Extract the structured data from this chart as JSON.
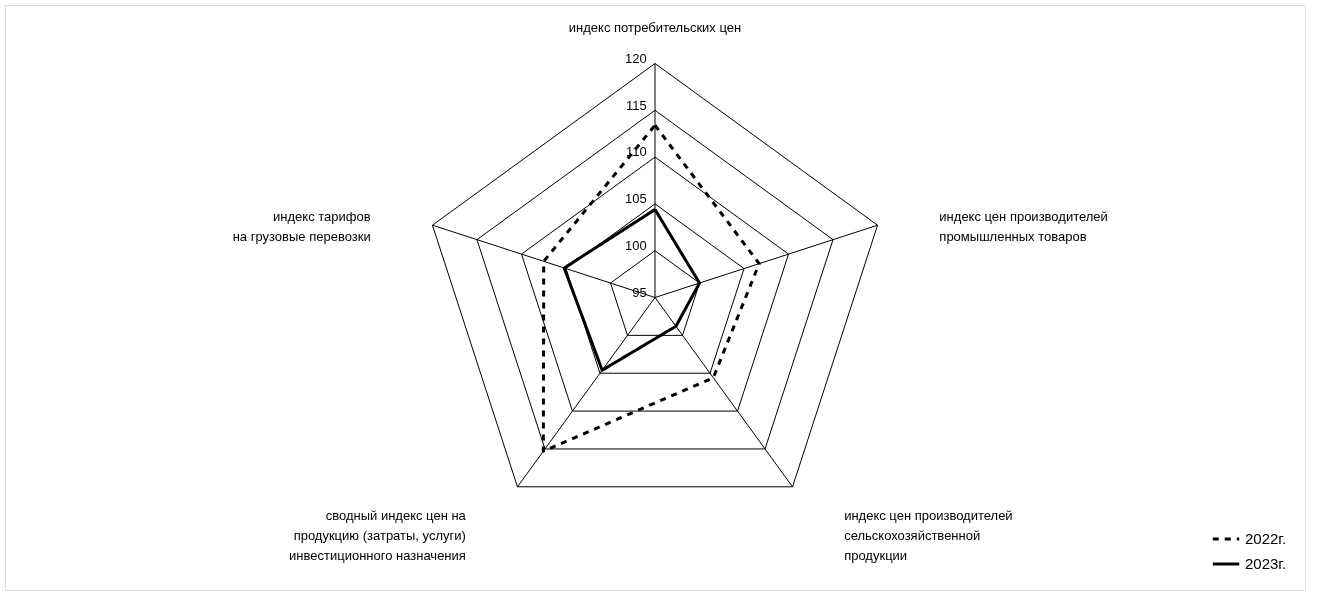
{
  "chart_data": {
    "type": "radar",
    "categories": [
      "индекс потребительских цен",
      "индекс цен производителей\nпромышленных товаров",
      "индекс цен производителей\nсельскохозяйственной\nпродукции",
      "сводный индекс цен на\nпродукцию (затраты, услуги)\nинвестиционного назначения",
      "индекс тарифов\nна грузовые перевозки"
    ],
    "series": [
      {
        "name": "2022г.",
        "color": "#000000",
        "line_style": "dashed",
        "values": [
          113.4,
          106.7,
          105.6,
          115.3,
          107.5
        ]
      },
      {
        "name": "2023г.",
        "color": "#000000",
        "line_style": "solid",
        "values": [
          104.4,
          100.0,
          98.8,
          104.6,
          105.2
        ]
      }
    ],
    "ylim": [
      95,
      120
    ],
    "yticks": [
      95,
      100,
      105,
      110,
      115,
      120
    ],
    "grid": true,
    "legend": "bottom right"
  }
}
